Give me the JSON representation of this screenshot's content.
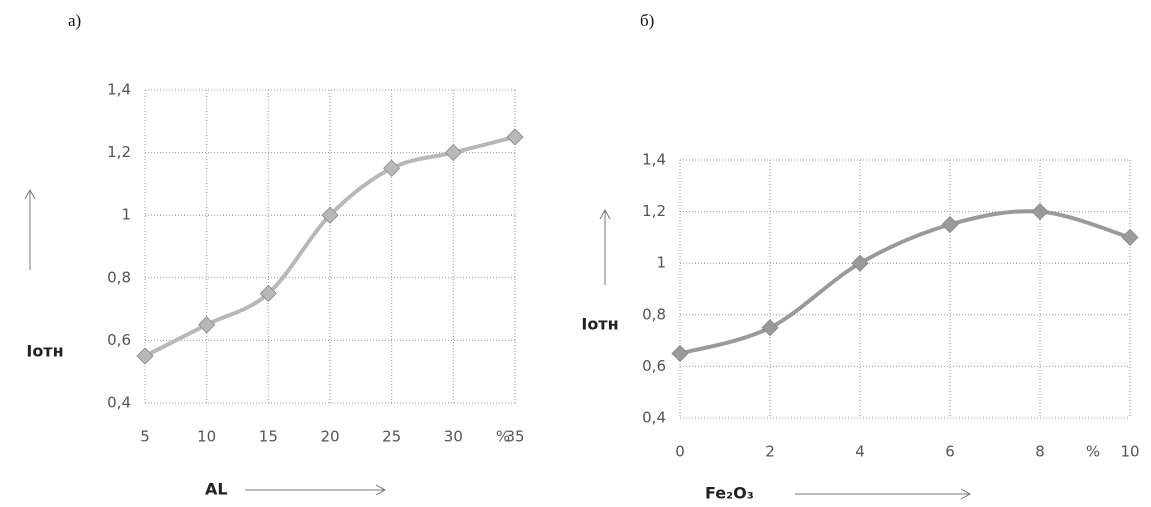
{
  "chart_data": [
    {
      "type": "line",
      "panel_label": "а)",
      "x_label": "AL",
      "y_label": "Iотн",
      "x_unit": "%",
      "x": [
        5,
        10,
        15,
        20,
        25,
        30,
        35
      ],
      "values": [
        0.55,
        0.65,
        0.75,
        1.0,
        1.15,
        1.2,
        1.25
      ],
      "color": "#b8b8b8",
      "xlim": [
        5,
        35
      ],
      "xticks": [
        5,
        10,
        15,
        20,
        25,
        30,
        35
      ],
      "ylim": [
        0.4,
        1.4
      ],
      "yticks": [
        {
          "value": 0.4,
          "label": "0,4"
        },
        {
          "value": 0.6,
          "label": "0,6"
        },
        {
          "value": 0.8,
          "label": "0,8"
        },
        1,
        {
          "value": 1.2,
          "label": "1,2"
        },
        {
          "value": 1.4,
          "label": "1,4"
        }
      ],
      "grid": true
    },
    {
      "type": "line",
      "panel_label": "б)",
      "x_label": "Fe₂O₃",
      "y_label": "Iотн",
      "x_unit": "%",
      "x": [
        0,
        2,
        4,
        6,
        8,
        10
      ],
      "values": [
        0.65,
        0.75,
        1.0,
        1.15,
        1.2,
        1.1
      ],
      "color": "#9a9a9a",
      "xlim": [
        0,
        10
      ],
      "xticks": [
        0,
        2,
        4,
        6,
        8,
        10
      ],
      "ylim": [
        0.4,
        1.4
      ],
      "yticks": [
        {
          "value": 0.4,
          "label": "0,4"
        },
        {
          "value": 0.6,
          "label": "0,6"
        },
        {
          "value": 0.8,
          "label": "0,8"
        },
        1,
        {
          "value": 1.2,
          "label": "1,2"
        },
        {
          "value": 1.4,
          "label": "1,4"
        }
      ],
      "grid": true
    }
  ]
}
